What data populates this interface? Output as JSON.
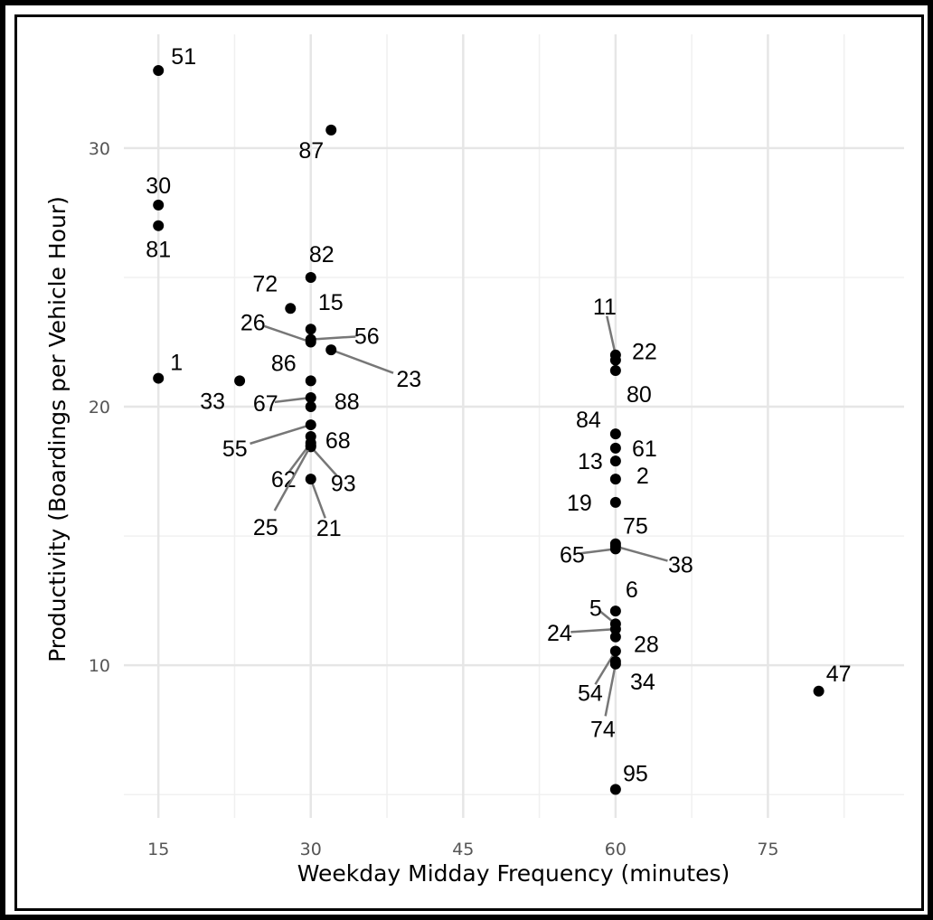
{
  "chart_data": {
    "type": "scatter",
    "x_label": "Weekday Midday Frequency (minutes)",
    "y_label": "Productivity (Boardings per Vehicle Hour)",
    "xlim": [
      11.6,
      88.4
    ],
    "ylim": [
      4.1,
      34.4
    ],
    "xticks": [
      15,
      30,
      45,
      60,
      75
    ],
    "yticks": [
      10,
      20,
      30
    ],
    "grid": true,
    "series": [
      {
        "color": "#000000",
        "x": [
          15,
          32,
          15,
          15,
          30,
          28,
          30,
          30,
          30,
          32,
          15,
          23,
          30,
          30,
          30,
          30,
          30,
          30,
          30,
          30,
          30,
          60,
          60,
          60,
          60,
          60,
          60,
          60,
          60,
          60,
          60,
          60,
          60,
          60,
          60,
          60,
          60,
          60,
          60,
          60,
          80
        ],
        "values": [
          33.0,
          30.7,
          27.8,
          27.0,
          25.0,
          23.8,
          23.0,
          22.5,
          22.6,
          22.2,
          21.1,
          21.0,
          21.0,
          20.35,
          20.0,
          19.3,
          18.85,
          18.6,
          18.45,
          18.5,
          17.2,
          22.0,
          21.8,
          21.4,
          18.95,
          18.4,
          17.9,
          17.2,
          16.3,
          14.7,
          14.5,
          14.6,
          12.1,
          11.6,
          11.4,
          11.1,
          10.55,
          10.05,
          10.15,
          5.2,
          9.0
        ],
        "point_labels": [
          "51",
          "87",
          "30",
          "81",
          "82",
          "72",
          "15",
          "26",
          "56",
          "23",
          "1",
          "33",
          "86",
          "67",
          "88",
          "55",
          "68",
          "62",
          "93",
          "25",
          "21",
          "11",
          "22",
          "80",
          "84",
          "61",
          "13",
          "2",
          "19",
          "75",
          "65",
          "38",
          "6",
          "5",
          "24",
          "28",
          "54",
          "74",
          "34",
          "95",
          "47"
        ]
      }
    ]
  }
}
